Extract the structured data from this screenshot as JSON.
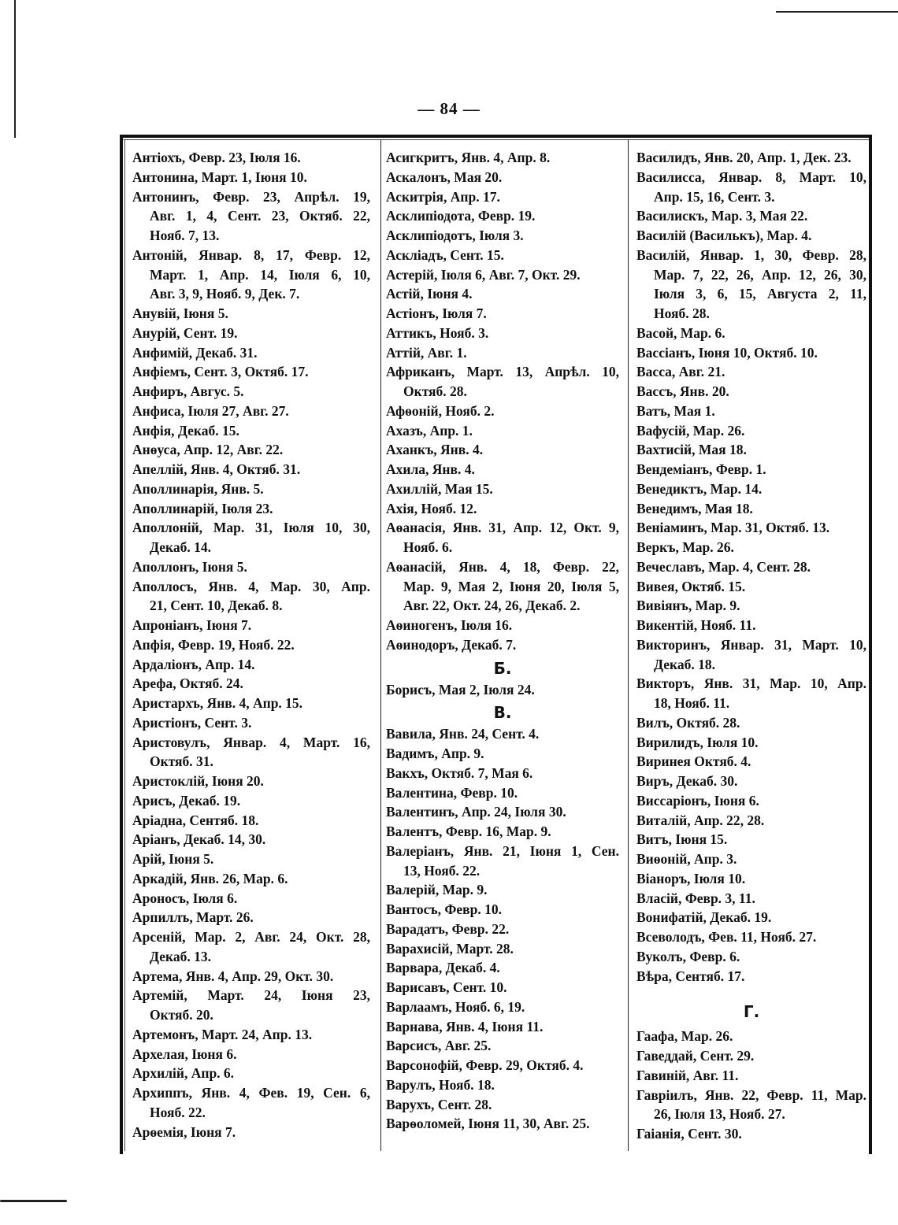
{
  "page_number": "— 84 —",
  "columns": [
    {
      "items": [
        {
          "lines": [
            "Антіохъ, Февр. 23, Іюля 16."
          ]
        },
        {
          "lines": [
            "Антонина, Март. 1, Іюня 10."
          ]
        },
        {
          "lines": [
            "Антонинъ, Февр. 23, Апрѣл. 19,",
            "Авг. 1, 4, Сент. 23, Октяб. 22,",
            "Нояб. 7, 13."
          ]
        },
        {
          "lines": [
            "Антоній, Январ. 8, 17, Февр. 12,",
            "Март. 1, Апр. 14, Іюля 6, 10,",
            "Авг. 3, 9, Нояб. 9, Дек. 7."
          ]
        },
        {
          "lines": [
            "Анувій, Іюня 5."
          ]
        },
        {
          "lines": [
            "Анурій, Сент. 19."
          ]
        },
        {
          "lines": [
            "Анфимій, Декаб. 31."
          ]
        },
        {
          "lines": [
            "Анфіемъ, Сент. 3, Октяб. 17."
          ]
        },
        {
          "lines": [
            "Анфиръ, Авгус. 5."
          ]
        },
        {
          "lines": [
            "Анфиса, Іюля 27, Авг. 27."
          ]
        },
        {
          "lines": [
            "Анфія, Декаб. 15."
          ]
        },
        {
          "lines": [
            "Анѳуса, Апр. 12, Авг. 22."
          ]
        },
        {
          "lines": [
            "Апеллій, Янв. 4, Октяб. 31."
          ]
        },
        {
          "lines": [
            "Аполлинарія, Янв. 5."
          ]
        },
        {
          "lines": [
            "Аполлинарій, Іюля 23."
          ]
        },
        {
          "lines": [
            "Аполлоній, Мар. 31, Іюля 10, 30,",
            "Декаб. 14."
          ]
        },
        {
          "lines": [
            "Аполлонъ, Іюня 5."
          ]
        },
        {
          "lines": [
            "Аполлосъ, Янв. 4, Мар. 30, Апр.",
            "21, Сент. 10, Декаб. 8."
          ]
        },
        {
          "lines": [
            "Апроніанъ, Іюня 7."
          ]
        },
        {
          "lines": [
            "Апфія, Февр. 19, Нояб. 22."
          ]
        },
        {
          "lines": [
            "Ардаліонъ, Апр. 14."
          ]
        },
        {
          "lines": [
            "Арефа, Октяб. 24."
          ]
        },
        {
          "lines": [
            "Аристархъ, Янв. 4, Апр. 15."
          ]
        },
        {
          "lines": [
            "Аристіонъ, Сент. 3."
          ]
        },
        {
          "lines": [
            "Аристовулъ, Январ. 4, Март. 16,",
            "Октяб. 31."
          ]
        },
        {
          "lines": [
            "Аристоклій, Іюня 20."
          ]
        },
        {
          "lines": [
            "Арисъ, Декаб. 19."
          ]
        },
        {
          "lines": [
            "Аріадна, Сентяб. 18."
          ]
        },
        {
          "lines": [
            "Аріанъ, Декаб. 14, 30."
          ]
        },
        {
          "lines": [
            "Арій, Іюня 5."
          ]
        },
        {
          "lines": [
            "Аркадій, Янв. 26, Мар. 6."
          ]
        },
        {
          "lines": [
            "Ароносъ, Іюля 6."
          ]
        },
        {
          "lines": [
            "Арпиллъ, Март. 26."
          ]
        },
        {
          "lines": [
            "Арсеній, Мар. 2, Авг. 24, Окт. 28,",
            "Декаб. 13."
          ]
        },
        {
          "lines": [
            "Артема, Янв. 4, Апр. 29, Окт. 30."
          ]
        },
        {
          "lines": [
            "Артемій, Март. 24, Іюня 23,",
            "Октяб. 20."
          ]
        },
        {
          "lines": [
            "Артемонъ, Март. 24, Апр. 13."
          ]
        },
        {
          "lines": [
            "Архелая, Іюня 6."
          ]
        },
        {
          "lines": [
            "Архилій, Апр. 6."
          ]
        },
        {
          "lines": [
            "Архиппъ, Янв. 4, Фев. 19, Сен. 6,",
            "Нояб. 22."
          ]
        },
        {
          "lines": [
            "Арѳемія, Іюня 7."
          ]
        }
      ]
    },
    {
      "items": [
        {
          "lines": [
            "Асигкритъ, Янв. 4, Апр. 8."
          ]
        },
        {
          "lines": [
            "Аскалонъ, Мая 20."
          ]
        },
        {
          "lines": [
            "Аскитрія, Апр. 17."
          ]
        },
        {
          "lines": [
            "Асклипіодота, Февр. 19."
          ]
        },
        {
          "lines": [
            "Асклипіодотъ, Іюля 3."
          ]
        },
        {
          "lines": [
            "Аскліадъ, Сент. 15."
          ]
        },
        {
          "lines": [
            "Астерій, Іюля 6, Авг. 7, Окт. 29."
          ]
        },
        {
          "lines": [
            "Астій, Іюня 4."
          ]
        },
        {
          "lines": [
            "Астіонъ, Іюля 7."
          ]
        },
        {
          "lines": [
            "Аттикъ, Нояб. 3."
          ]
        },
        {
          "lines": [
            "Аттій, Авг. 1."
          ]
        },
        {
          "lines": [
            "Африканъ, Март. 13, Апрѣл. 10,",
            "Октяб. 28."
          ]
        },
        {
          "lines": [
            "Афѳоній, Нояб. 2."
          ]
        },
        {
          "lines": [
            "Ахазъ, Апр. 1."
          ]
        },
        {
          "lines": [
            "Аханкъ, Янв. 4."
          ]
        },
        {
          "lines": [
            "Ахила, Янв. 4."
          ]
        },
        {
          "lines": [
            "Ахиллій, Мая 15."
          ]
        },
        {
          "lines": [
            "Ахія, Нояб. 12."
          ]
        },
        {
          "lines": [
            "Аѳанасія, Янв. 31, Апр. 12, Окт. 9,",
            "Нояб. 6."
          ]
        },
        {
          "lines": [
            "Аѳанасій, Янв. 4, 18, Февр. 22,",
            "Мар. 9, Мая 2, Іюня 20, Іюля 5,",
            "Авг. 22, Окт. 24, 26, Декаб. 2."
          ]
        },
        {
          "lines": [
            "Аѳиногенъ, Іюля 16."
          ]
        },
        {
          "lines": [
            "Аѳинодоръ, Декаб. 7."
          ]
        },
        {
          "heading": "Б."
        },
        {
          "lines": [
            "Борисъ, Мая 2, Іюля 24."
          ]
        },
        {
          "heading": "В."
        },
        {
          "lines": [
            "Вавила, Янв. 24, Сент. 4."
          ]
        },
        {
          "lines": [
            "Вадимъ, Апр. 9."
          ]
        },
        {
          "lines": [
            "Вакхъ, Октяб. 7, Мая 6."
          ]
        },
        {
          "lines": [
            "Валентина, Февр. 10."
          ]
        },
        {
          "lines": [
            "Валентинъ, Апр. 24, Іюля 30."
          ]
        },
        {
          "lines": [
            "Валентъ, Февр. 16, Мар. 9."
          ]
        },
        {
          "lines": [
            "Валеріанъ, Янв. 21, Іюня 1, Сен.",
            "13, Нояб. 22."
          ]
        },
        {
          "lines": [
            "Валерій, Мар. 9."
          ]
        },
        {
          "lines": [
            "Вантосъ, Февр. 10."
          ]
        },
        {
          "lines": [
            "Варадатъ, Февр. 22."
          ]
        },
        {
          "lines": [
            "Варахисій, Март. 28."
          ]
        },
        {
          "lines": [
            "Варвара, Декаб. 4."
          ]
        },
        {
          "lines": [
            "Варисавъ, Сент. 10."
          ]
        },
        {
          "lines": [
            "Варлаамъ, Нояб. 6, 19."
          ]
        },
        {
          "lines": [
            "Варнава, Янв. 4, Іюня 11."
          ]
        },
        {
          "lines": [
            "Варсисъ, Авг. 25."
          ]
        },
        {
          "lines": [
            "Варсонофій, Февр. 29, Октяб. 4."
          ]
        },
        {
          "lines": [
            "Варулъ, Нояб. 18."
          ]
        },
        {
          "lines": [
            "Варухъ, Сент. 28."
          ]
        },
        {
          "lines": [
            "Варѳоломей, Іюня 11, 30, Авг. 25."
          ]
        }
      ]
    },
    {
      "items": [
        {
          "lines": [
            "Василидъ, Янв. 20, Апр. 1, Дек. 23."
          ]
        },
        {
          "lines": [
            "Василисса, Январ. 8, Март. 10,",
            "Апр. 15, 16, Сент. 3."
          ]
        },
        {
          "lines": [
            "Василискъ, Мар. 3, Мая 22."
          ]
        },
        {
          "lines": [
            "Василій (Василькъ), Мар. 4."
          ]
        },
        {
          "lines": [
            "Василій, Январ. 1, 30, Февр. 28,",
            "Мар. 7, 22, 26, Апр. 12, 26, 30,",
            "Іюля 3, 6, 15, Августа 2, 11,",
            "Нояб. 28."
          ]
        },
        {
          "lines": [
            "Васой, Мар. 6."
          ]
        },
        {
          "lines": [
            "Вассіанъ, Іюня 10, Октяб. 10."
          ]
        },
        {
          "lines": [
            "Васса, Авг. 21."
          ]
        },
        {
          "lines": [
            "Вассъ, Янв. 20."
          ]
        },
        {
          "lines": [
            "Ватъ, Мая 1."
          ]
        },
        {
          "lines": [
            "Вафусій, Мар. 26."
          ]
        },
        {
          "lines": [
            "Вахтисій, Мая 18."
          ]
        },
        {
          "lines": [
            "Вендеміанъ, Февр. 1."
          ]
        },
        {
          "lines": [
            "Венедиктъ, Мар. 14."
          ]
        },
        {
          "lines": [
            "Венедимъ, Мая 18."
          ]
        },
        {
          "lines": [
            "Веніаминъ, Мар. 31, Октяб. 13."
          ]
        },
        {
          "lines": [
            "Веркъ, Мар. 26."
          ]
        },
        {
          "lines": [
            "Вечеславъ, Мар. 4, Сент. 28."
          ]
        },
        {
          "lines": [
            "Вивея, Октяб. 15."
          ]
        },
        {
          "lines": [
            "Вивіянъ, Мар. 9."
          ]
        },
        {
          "lines": [
            "Викентій, Нояб. 11."
          ]
        },
        {
          "lines": [
            "Викторинъ, Январ. 31, Март. 10,",
            "Декаб. 18."
          ]
        },
        {
          "lines": [
            "Викторъ, Янв. 31, Мар. 10, Апр.",
            "18, Нояб. 11."
          ]
        },
        {
          "lines": [
            "Вилъ, Октяб. 28."
          ]
        },
        {
          "lines": [
            "Вирилидъ, Іюля 10."
          ]
        },
        {
          "lines": [
            "Виринея Октяб. 4."
          ]
        },
        {
          "lines": [
            "Виръ, Декаб. 30."
          ]
        },
        {
          "lines": [
            "Виссаріонъ, Іюня 6."
          ]
        },
        {
          "lines": [
            "Виталій, Апр. 22, 28."
          ]
        },
        {
          "lines": [
            "Витъ, Іюня 15."
          ]
        },
        {
          "lines": [
            "Виѳоній, Апр. 3."
          ]
        },
        {
          "lines": [
            "Віаноръ, Іюля 10."
          ]
        },
        {
          "lines": [
            "Власій, Февр. 3, 11."
          ]
        },
        {
          "lines": [
            "Вонифатій, Декаб. 19."
          ]
        },
        {
          "lines": [
            "Всеволодъ, Фев. 11, Нояб. 27."
          ]
        },
        {
          "lines": [
            "Вуколъ, Февр. 6."
          ]
        },
        {
          "lines": [
            "Вѣра, Сентяб. 17."
          ]
        },
        {
          "heading": "Г."
        },
        {
          "lines": [
            "Гаафа, Мар. 26."
          ]
        },
        {
          "lines": [
            "Гаведдай, Сент. 29."
          ]
        },
        {
          "lines": [
            "Гавиній, Авг. 11."
          ]
        },
        {
          "lines": [
            "Гавріилъ, Янв. 22, Февр. 11, Мар.",
            "26, Іюля 13, Нояб. 27."
          ]
        },
        {
          "lines": [
            "Гаіанія, Сент. 30."
          ]
        }
      ]
    }
  ]
}
